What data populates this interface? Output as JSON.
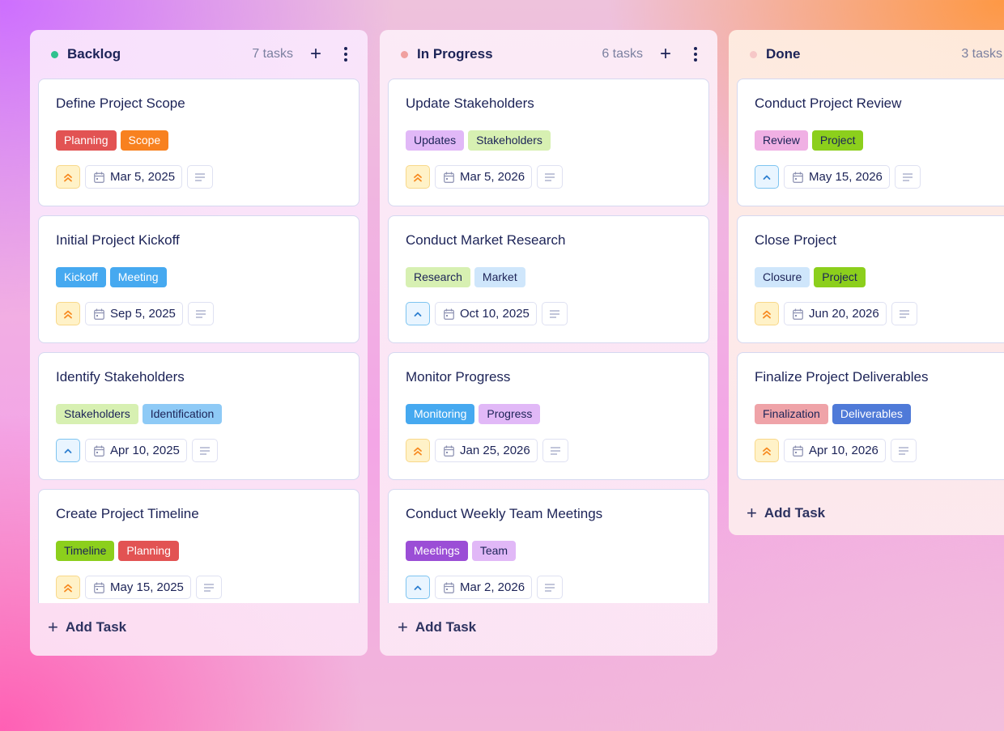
{
  "columns": [
    {
      "id": "backlog",
      "title": "Backlog",
      "count_label": "7 tasks",
      "dot_color": "#2fc18e",
      "add_icon": "+",
      "add_task_label": "Add Task",
      "cards": [
        {
          "title": "Define Project Scope",
          "tags": [
            {
              "label": "Planning",
              "bg": "#e25353",
              "fg": "#ffffff"
            },
            {
              "label": "Scope",
              "bg": "#f8811f",
              "fg": "#ffffff"
            }
          ],
          "priority": "high",
          "date": "Mar 5, 2025"
        },
        {
          "title": "Initial Project Kickoff",
          "tags": [
            {
              "label": "Kickoff",
              "bg": "#46a9f0",
              "fg": "#ffffff"
            },
            {
              "label": "Meeting",
              "bg": "#46a9f0",
              "fg": "#ffffff"
            }
          ],
          "priority": "high",
          "date": "Sep 5, 2025"
        },
        {
          "title": "Identify Stakeholders",
          "tags": [
            {
              "label": "Stakeholders",
              "bg": "#d7f0b2",
              "fg": "#1c2357"
            },
            {
              "label": "Identification",
              "bg": "#8ecaf6",
              "fg": "#1c2357"
            }
          ],
          "priority": "medium",
          "date": "Apr 10, 2025"
        },
        {
          "title": "Create Project Timeline",
          "tags": [
            {
              "label": "Timeline",
              "bg": "#8ccf1c",
              "fg": "#1c2357"
            },
            {
              "label": "Planning",
              "bg": "#e25353",
              "fg": "#ffffff"
            }
          ],
          "priority": "high",
          "date": "May 15, 2025"
        }
      ]
    },
    {
      "id": "in-progress",
      "title": "In Progress",
      "count_label": "6 tasks",
      "dot_color": "#f0a0a0",
      "add_icon": "+",
      "add_task_label": "Add Task",
      "cards": [
        {
          "title": "Update Stakeholders",
          "tags": [
            {
              "label": "Updates",
              "bg": "#e1b8f7",
              "fg": "#1c2357"
            },
            {
              "label": "Stakeholders",
              "bg": "#d7f0b2",
              "fg": "#1c2357"
            }
          ],
          "priority": "high",
          "date": "Mar 5, 2026"
        },
        {
          "title": "Conduct Market Research",
          "tags": [
            {
              "label": "Research",
              "bg": "#d7f0b2",
              "fg": "#1c2357"
            },
            {
              "label": "Market",
              "bg": "#cfe6fb",
              "fg": "#1c2357"
            }
          ],
          "priority": "medium",
          "date": "Oct 10, 2025"
        },
        {
          "title": "Monitor Progress",
          "tags": [
            {
              "label": "Monitoring",
              "bg": "#46a9f0",
              "fg": "#ffffff"
            },
            {
              "label": "Progress",
              "bg": "#e1b8f7",
              "fg": "#1c2357"
            }
          ],
          "priority": "high",
          "date": "Jan 25, 2026"
        },
        {
          "title": "Conduct Weekly Team Meetings",
          "tags": [
            {
              "label": "Meetings",
              "bg": "#9b4ed6",
              "fg": "#ffffff"
            },
            {
              "label": "Team",
              "bg": "#e1b8f7",
              "fg": "#1c2357"
            }
          ],
          "priority": "medium",
          "date": "Mar 2, 2026"
        }
      ]
    },
    {
      "id": "done",
      "title": "Done",
      "count_label": "3 tasks",
      "dot_color": "#f6c7c7",
      "add_task_label": "Add Task",
      "cards": [
        {
          "title": "Conduct Project Review",
          "tags": [
            {
              "label": "Review",
              "bg": "#f0b0e4",
              "fg": "#1c2357"
            },
            {
              "label": "Project",
              "bg": "#8ccf1c",
              "fg": "#1c2357"
            }
          ],
          "priority": "medium",
          "date": "May 15, 2026"
        },
        {
          "title": "Close Project",
          "tags": [
            {
              "label": "Closure",
              "bg": "#cfe6fb",
              "fg": "#1c2357"
            },
            {
              "label": "Project",
              "bg": "#8ccf1c",
              "fg": "#1c2357"
            }
          ],
          "priority": "high",
          "date": "Jun 20, 2026"
        },
        {
          "title": "Finalize Project Deliverables",
          "tags": [
            {
              "label": "Finalization",
              "bg": "#efa3a8",
              "fg": "#1c2357"
            },
            {
              "label": "Deliverables",
              "bg": "#4f7ad8",
              "fg": "#ffffff"
            }
          ],
          "priority": "high",
          "date": "Apr 10, 2026"
        }
      ]
    }
  ],
  "icons": {
    "priority_high": "chevrons-up-icon",
    "priority_medium": "chevron-up-icon",
    "date": "calendar-icon",
    "notes": "notes-lines-icon",
    "more": "more-vertical-icon",
    "add": "plus-icon"
  },
  "colors": {
    "priority_high": "#f7891f",
    "priority_medium": "#2d7fd0",
    "text_primary": "#1c2357",
    "text_muted": "#7b80a0"
  }
}
